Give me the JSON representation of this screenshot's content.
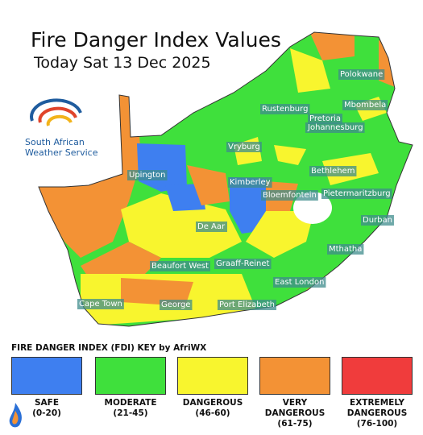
{
  "header": {
    "title": "Fire Danger Index Values",
    "subtitle": "Today Sat 13 Dec 2025"
  },
  "logo": {
    "line1": "South African",
    "line2": "Weather Service"
  },
  "cities": [
    "Polokwane",
    "Rustenburg",
    "Mbombela",
    "Pretoria",
    "Johannesburg",
    "Vryburg",
    "Bethlehem",
    "Upington",
    "Kimberley",
    "Bloemfontein",
    "Pietermaritzburg",
    "Durban",
    "De Aar",
    "Mthatha",
    "Beaufort West",
    "Graaff-Reinet",
    "East London",
    "Cape Town",
    "George",
    "Port Elizabeth"
  ],
  "key": {
    "title": "FIRE DANGER INDEX (FDI) KEY by AfriWX",
    "items": [
      {
        "label": "SAFE",
        "range": "(0-20)",
        "color": "#3e7ff0"
      },
      {
        "label": "MODERATE",
        "range": "(21-45)",
        "color": "#3fe03c"
      },
      {
        "label": "DANGEROUS",
        "range": "(46-60)",
        "color": "#f8f52e"
      },
      {
        "label": "VERY DANGEROUS",
        "range": "(61-75)",
        "color": "#f39235"
      },
      {
        "label": "EXTREMELY DANGEROUS",
        "range": "(76-100)",
        "color": "#f03c3c"
      }
    ]
  }
}
